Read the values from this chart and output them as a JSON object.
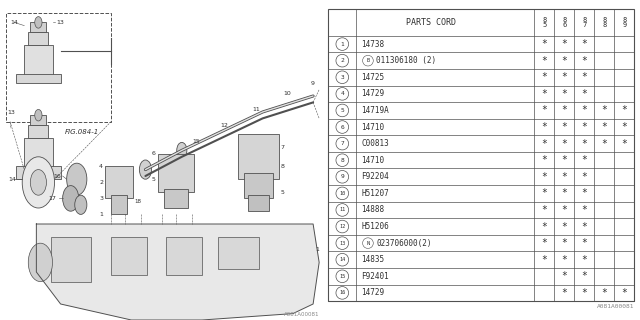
{
  "bg_color": "#ffffff",
  "parts_cord_header": "PARTS CORD",
  "year_labels": [
    "85",
    "86",
    "87",
    "88",
    "89"
  ],
  "rows": [
    {
      "num": "1",
      "prefix": "",
      "part": "14738",
      "stars": [
        1,
        1,
        1,
        0,
        0
      ]
    },
    {
      "num": "2",
      "prefix": "B",
      "part": "011306180 (2)",
      "stars": [
        1,
        1,
        1,
        0,
        0
      ]
    },
    {
      "num": "3",
      "prefix": "",
      "part": "14725",
      "stars": [
        1,
        1,
        1,
        0,
        0
      ]
    },
    {
      "num": "4",
      "prefix": "",
      "part": "14729",
      "stars": [
        1,
        1,
        1,
        0,
        0
      ]
    },
    {
      "num": "5",
      "prefix": "",
      "part": "14719A",
      "stars": [
        1,
        1,
        1,
        1,
        1
      ]
    },
    {
      "num": "6",
      "prefix": "",
      "part": "14710",
      "stars": [
        1,
        1,
        1,
        1,
        1
      ]
    },
    {
      "num": "7",
      "prefix": "",
      "part": "C00813",
      "stars": [
        1,
        1,
        1,
        1,
        1
      ]
    },
    {
      "num": "8",
      "prefix": "",
      "part": "14710",
      "stars": [
        1,
        1,
        1,
        0,
        0
      ]
    },
    {
      "num": "9",
      "prefix": "",
      "part": "F92204",
      "stars": [
        1,
        1,
        1,
        0,
        0
      ]
    },
    {
      "num": "10",
      "prefix": "",
      "part": "H51207",
      "stars": [
        1,
        1,
        1,
        0,
        0
      ]
    },
    {
      "num": "11",
      "prefix": "",
      "part": "14888",
      "stars": [
        1,
        1,
        1,
        0,
        0
      ]
    },
    {
      "num": "12",
      "prefix": "",
      "part": "H51206",
      "stars": [
        1,
        1,
        1,
        0,
        0
      ]
    },
    {
      "num": "13",
      "prefix": "N",
      "part": "023706000(2)",
      "stars": [
        1,
        1,
        1,
        0,
        0
      ]
    },
    {
      "num": "14",
      "prefix": "",
      "part": "14835",
      "stars": [
        1,
        1,
        1,
        0,
        0
      ]
    },
    {
      "num": "15",
      "prefix": "",
      "part": "F92401",
      "stars": [
        0,
        1,
        1,
        0,
        0
      ]
    },
    {
      "num": "16",
      "prefix": "",
      "part": "14729",
      "stars": [
        0,
        1,
        1,
        1,
        1
      ]
    }
  ],
  "watermark": "A081A00081",
  "diagram_label": "FIG.084-1",
  "line_color": "#909090",
  "text_color": "#303030",
  "draw_color": "#505050"
}
